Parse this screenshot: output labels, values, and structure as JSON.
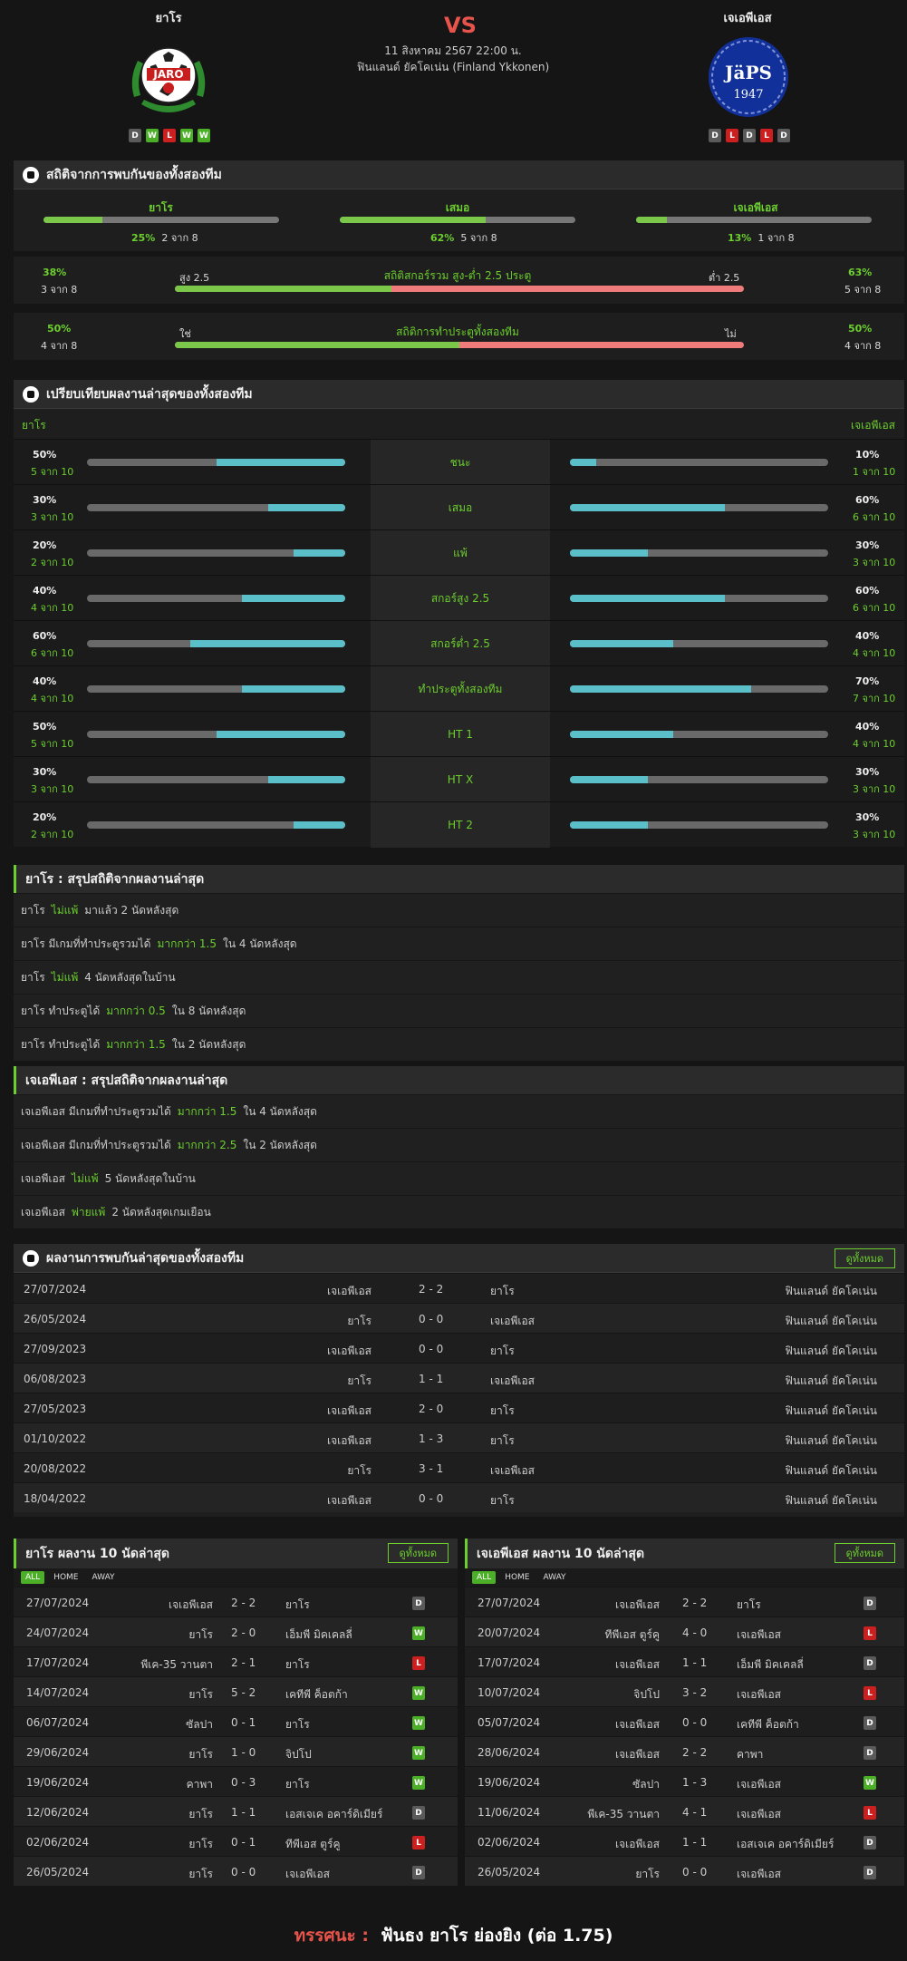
{
  "match": {
    "home": "ยาโร",
    "away": "เจเอพีเอส",
    "vs": "VS",
    "datetime": "11 สิงหาคม 2567 22:00 น.",
    "league": "ฟินแลนด์ ยัคโคเน่น (Finland Ykkonen)",
    "home_form": [
      "D",
      "W",
      "L",
      "W",
      "W"
    ],
    "away_form": [
      "D",
      "L",
      "D",
      "L",
      "D"
    ],
    "home_logo_text": "JARO",
    "away_logo_text": "JäPS 1947"
  },
  "h2h_stats": {
    "title": "สถิติจากการพบกันของทั้งสองทีม",
    "home_label": "ยาโร",
    "home_pct": "25%",
    "home_count": "2 จาก 8",
    "home_val": 25,
    "draw_label": "เสมอ",
    "draw_pct": "62%",
    "draw_count": "5 จาก 8",
    "draw_val": 62,
    "away_label": "เจเอพีเอส",
    "away_pct": "13%",
    "away_count": "1 จาก 8",
    "away_val": 13,
    "ou": {
      "left_pct": "38%",
      "left_count": "3 จาก 8",
      "left_tag": "สูง 2.5",
      "title": "สถิติสกอร์รวม สูง-ต่ำ 2.5 ประตู",
      "right_tag": "ต่ำ 2.5",
      "right_pct": "63%",
      "right_count": "5 จาก 8",
      "val": 38
    },
    "btts": {
      "left_pct": "50%",
      "left_count": "4 จาก 8",
      "left_tag": "ใช่",
      "title": "สถิติการทำประตูทั้งสองทีม",
      "right_tag": "ไม่",
      "right_pct": "50%",
      "right_count": "4 จาก 8",
      "val": 50
    }
  },
  "recent": {
    "title": "เปรียบเทียบผลงานล่าสุดของทั้งสองทีม",
    "home_label": "ยาโร",
    "away_label": "เจเอพีเอส",
    "rows": [
      {
        "label": "ชนะ",
        "hp": "50%",
        "hc": "5 จาก 10",
        "hv": 50,
        "ap": "10%",
        "ac": "1 จาก 10",
        "av": 10
      },
      {
        "label": "เสมอ",
        "hp": "30%",
        "hc": "3 จาก 10",
        "hv": 30,
        "ap": "60%",
        "ac": "6 จาก 10",
        "av": 60
      },
      {
        "label": "แพ้",
        "hp": "20%",
        "hc": "2 จาก 10",
        "hv": 20,
        "ap": "30%",
        "ac": "3 จาก 10",
        "av": 30
      },
      {
        "label": "สกอร์สูง 2.5",
        "hp": "40%",
        "hc": "4 จาก 10",
        "hv": 40,
        "ap": "60%",
        "ac": "6 จาก 10",
        "av": 60
      },
      {
        "label": "สกอร์ต่ำ 2.5",
        "hp": "60%",
        "hc": "6 จาก 10",
        "hv": 60,
        "ap": "40%",
        "ac": "4 จาก 10",
        "av": 40
      },
      {
        "label": "ทำประตูทั้งสองทีม",
        "hp": "40%",
        "hc": "4 จาก 10",
        "hv": 40,
        "ap": "70%",
        "ac": "7 จาก 10",
        "av": 70
      },
      {
        "label": "HT 1",
        "hp": "50%",
        "hc": "5 จาก 10",
        "hv": 50,
        "ap": "40%",
        "ac": "4 จาก 10",
        "av": 40
      },
      {
        "label": "HT X",
        "hp": "30%",
        "hc": "3 จาก 10",
        "hv": 30,
        "ap": "30%",
        "ac": "3 จาก 10",
        "av": 30
      },
      {
        "label": "HT 2",
        "hp": "20%",
        "hc": "2 จาก 10",
        "hv": 20,
        "ap": "30%",
        "ac": "3 จาก 10",
        "av": 30
      }
    ]
  },
  "home_summary": {
    "title": "ยาโร : สรุปสถิติจากผลงานล่าสุด",
    "rows": [
      [
        "ยาโร",
        "ไม่แพ้",
        "มาแล้ว 2 นัดหลังสุด"
      ],
      [
        "ยาโร มีเกมที่ทำประตูรวมได้",
        "มากกว่า  1.5",
        "ใน 4 นัดหลังสุด"
      ],
      [
        "ยาโร",
        "ไม่แพ้",
        "4  นัดหลังสุดในบ้าน"
      ],
      [
        "ยาโร  ทำประตูได้",
        "มากกว่า  0.5",
        "ใน 8 นัดหลังสุด"
      ],
      [
        "ยาโร  ทำประตูได้",
        "มากกว่า  1.5",
        "ใน 2 นัดหลังสุด"
      ]
    ]
  },
  "away_summary": {
    "title": "เจเอพีเอส : สรุปสถิติจากผลงานล่าสุด",
    "rows": [
      [
        "เจเอพีเอส  มีเกมที่ทำประตูรวมได้",
        "มากกว่า  1.5",
        "ใน 4 นัดหลังสุด"
      ],
      [
        "เจเอพีเอส  มีเกมที่ทำประตูรวมได้",
        "มากกว่า  2.5",
        "ใน 2 นัดหลังสุด"
      ],
      [
        "เจเอพีเอส",
        "ไม่แพ้",
        "5  นัดหลังสุดในบ้าน"
      ],
      [
        "เจเอพีเอส",
        "พ่ายแพ้",
        "2  นัดหลังสุดเกมเยือน"
      ]
    ]
  },
  "h2h": {
    "title": "ผลงานการพบกันล่าสุดของทั้งสองทีม",
    "view_all": "ดูทั้งหมด",
    "rows": [
      [
        "27/07/2024",
        "เจเอพีเอส",
        "2 - 2",
        "ยาโร",
        "ฟินแลนด์ ยัคโคเน่น"
      ],
      [
        "26/05/2024",
        "ยาโร",
        "0 - 0",
        "เจเอพีเอส",
        "ฟินแลนด์ ยัคโคเน่น"
      ],
      [
        "27/09/2023",
        "เจเอพีเอส",
        "0 - 0",
        "ยาโร",
        "ฟินแลนด์ ยัคโคเน่น"
      ],
      [
        "06/08/2023",
        "ยาโร",
        "1 - 1",
        "เจเอพีเอส",
        "ฟินแลนด์ ยัคโคเน่น"
      ],
      [
        "27/05/2023",
        "เจเอพีเอส",
        "2 - 0",
        "ยาโร",
        "ฟินแลนด์ ยัคโคเน่น"
      ],
      [
        "01/10/2022",
        "เจเอพีเอส",
        "1 - 3",
        "ยาโร",
        "ฟินแลนด์ ยัคโคเน่น"
      ],
      [
        "20/08/2022",
        "ยาโร",
        "3 - 1",
        "เจเอพีเอส",
        "ฟินแลนด์ ยัคโคเน่น"
      ],
      [
        "18/04/2022",
        "เจเอพีเอส",
        "0 - 0",
        "ยาโร",
        "ฟินแลนด์ ยัคโคเน่น"
      ]
    ]
  },
  "home_last10": {
    "title": "ยาโร ผลงาน 10 นัดล่าสุด",
    "view_all": "ดูทั้งหมด",
    "tabs": [
      "ALL",
      "HOME",
      "AWAY"
    ],
    "rows": [
      [
        "27/07/2024",
        "เจเอพีเอส",
        "2 - 2",
        "ยาโร",
        "D"
      ],
      [
        "24/07/2024",
        "ยาโร",
        "2 - 0",
        "เอ็มพี มิคเคลลี่",
        "W"
      ],
      [
        "17/07/2024",
        "พีเค-35 วานตา",
        "2 - 1",
        "ยาโร",
        "L"
      ],
      [
        "14/07/2024",
        "ยาโร",
        "5 - 2",
        "เคทีพี ค็อตก้า",
        "W"
      ],
      [
        "06/07/2024",
        "ซัลปา",
        "0 - 1",
        "ยาโร",
        "W"
      ],
      [
        "29/06/2024",
        "ยาโร",
        "1 - 0",
        "จิปโป",
        "W"
      ],
      [
        "19/06/2024",
        "คาพา",
        "0 - 3",
        "ยาโร",
        "W"
      ],
      [
        "12/06/2024",
        "ยาโร",
        "1 - 1",
        "เอสเจเค อคาร์ดิเมียร์",
        "D"
      ],
      [
        "02/06/2024",
        "ยาโร",
        "0 - 1",
        "ทีพีเอส ตูร์คู",
        "L"
      ],
      [
        "26/05/2024",
        "ยาโร",
        "0 - 0",
        "เจเอพีเอส",
        "D"
      ]
    ]
  },
  "away_last10": {
    "title": "เจเอพีเอส ผลงาน 10 นัดล่าสุด",
    "view_all": "ดูทั้งหมด",
    "tabs": [
      "ALL",
      "HOME",
      "AWAY"
    ],
    "rows": [
      [
        "27/07/2024",
        "เจเอพีเอส",
        "2 - 2",
        "ยาโร",
        "D"
      ],
      [
        "20/07/2024",
        "ทีพีเอส ตูร์คู",
        "4 - 0",
        "เจเอพีเอส",
        "L"
      ],
      [
        "17/07/2024",
        "เจเอพีเอส",
        "1 - 1",
        "เอ็มพี มิคเคลลี่",
        "D"
      ],
      [
        "10/07/2024",
        "จิปโป",
        "3 - 2",
        "เจเอพีเอส",
        "L"
      ],
      [
        "05/07/2024",
        "เจเอพีเอส",
        "0 - 0",
        "เคทีพี ค็อตก้า",
        "D"
      ],
      [
        "28/06/2024",
        "เจเอพีเอส",
        "2 - 2",
        "คาพา",
        "D"
      ],
      [
        "19/06/2024",
        "ซัลปา",
        "1 - 3",
        "เจเอพีเอส",
        "W"
      ],
      [
        "11/06/2024",
        "พีเค-35 วานตา",
        "4 - 1",
        "เจเอพีเอส",
        "L"
      ],
      [
        "02/06/2024",
        "เจเอพีเอส",
        "1 - 1",
        "เอสเจเค อคาร์ดิเมียร์",
        "D"
      ],
      [
        "26/05/2024",
        "ยาโร",
        "0 - 0",
        "เจเอพีเอส",
        "D"
      ]
    ]
  },
  "prediction": {
    "label": "ทรรศนะ :",
    "text": "ฟันธง ยาโร ย่องยิง (ต่อ 1.75)"
  },
  "colors": {
    "accent": "#6ccf2e",
    "red": "#e8544b",
    "bar_cyan": "#5bbfc9",
    "win": "#4caf28",
    "loss": "#cc1f1f",
    "draw": "#5a5a5a"
  }
}
